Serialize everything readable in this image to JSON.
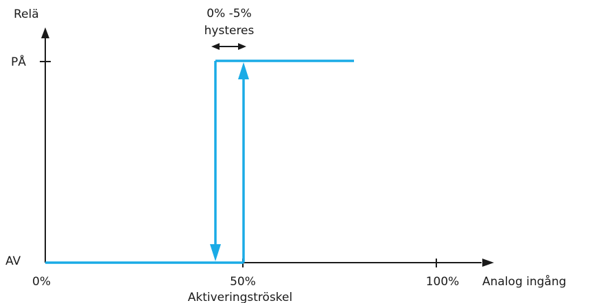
{
  "diagram": {
    "axis_y_label": "Relä",
    "axis_x_label": "Analog ingång",
    "level_on_label": "PÅ",
    "level_off_label": "AV",
    "hysteresis_line1": "0% -5%",
    "hysteresis_line2": "hysteres",
    "tick_0_label": "0%",
    "tick_50_label": "50%",
    "tick_100_label": "100%",
    "threshold_label": "Aktiveringströskel",
    "colors": {
      "curve": "#1aabe6",
      "axes": "#1a1a1a",
      "background": "#ffffff"
    }
  }
}
